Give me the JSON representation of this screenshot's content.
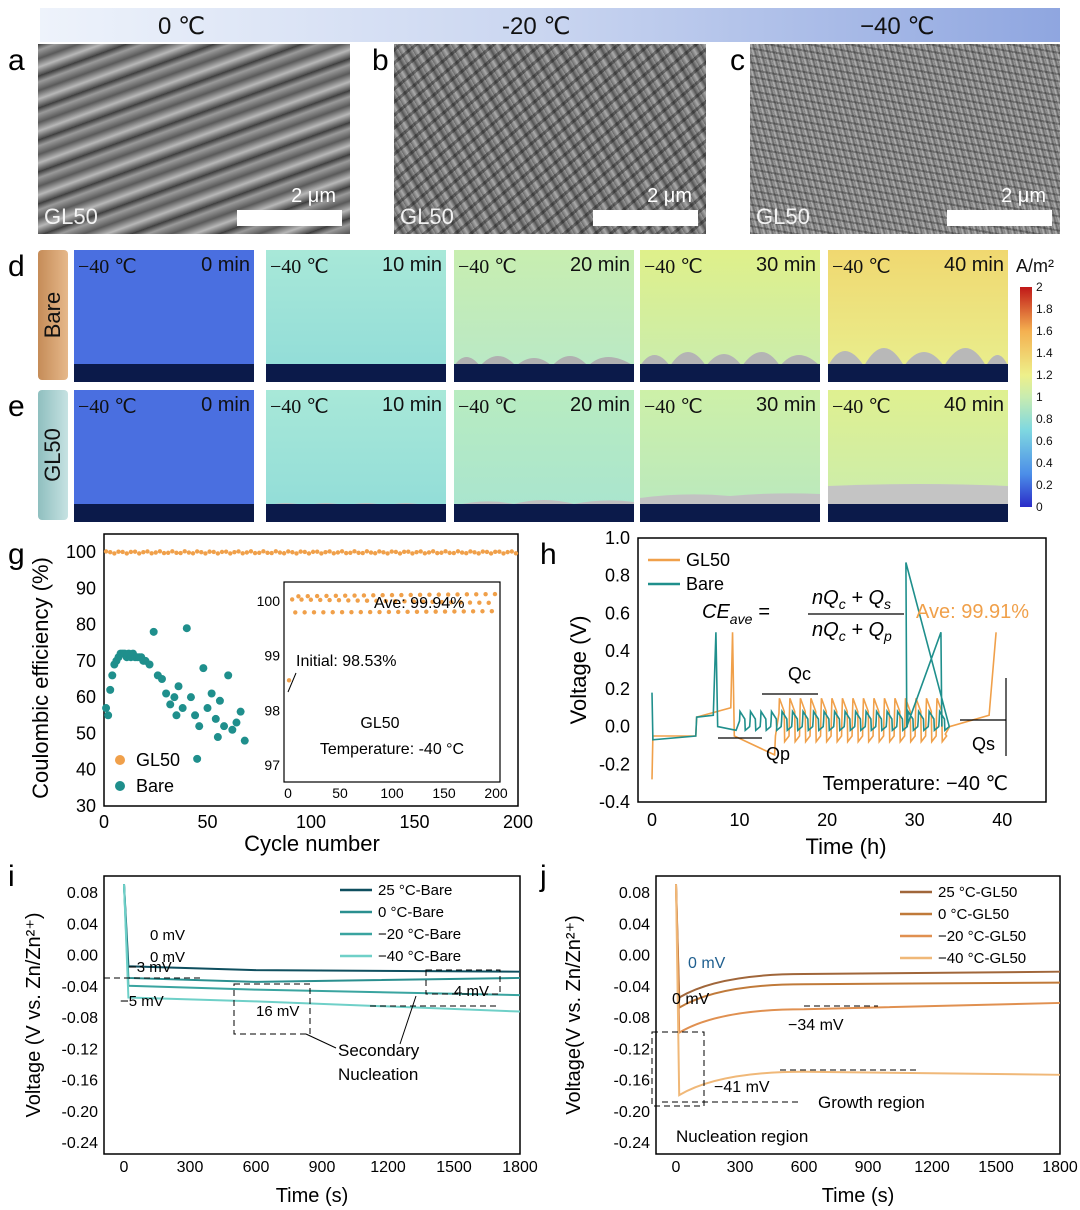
{
  "header": {
    "temps": [
      "0 ℃",
      "-20 ℃",
      "−40 ℃"
    ]
  },
  "panels": {
    "a": "a",
    "b": "b",
    "c": "c",
    "d": "d",
    "e": "e",
    "g": "g",
    "h": "h",
    "i": "i",
    "j": "j"
  },
  "sem": {
    "sample": "GL50",
    "scale": "2 μm"
  },
  "sim": {
    "rows": [
      "Bare",
      "GL50"
    ],
    "temp": "−40 ℃",
    "times": [
      "0 min",
      "10 min",
      "20 min",
      "30 min",
      "40 min"
    ],
    "unit": "A/m²",
    "cbar_ticks": [
      "2",
      "1.8",
      "1.6",
      "1.4",
      "1.2",
      "1",
      "0.8",
      "0.6",
      "0.4",
      "0.2",
      "0"
    ]
  },
  "chart_g": {
    "ylabel": "Coulombic efficiency (%)",
    "xlabel": "Cycle number",
    "yticks": [
      "30",
      "40",
      "50",
      "60",
      "70",
      "80",
      "90",
      "100"
    ],
    "xticks": [
      "0",
      "50",
      "100",
      "150",
      "200"
    ],
    "legend": [
      "GL50",
      "Bare"
    ],
    "inset": {
      "ave": "Ave: 99.94%",
      "initial": "Initial: 98.53%",
      "sample": "GL50",
      "temperature": "Temperature: -40 °C",
      "yticks": [
        "97",
        "98",
        "99",
        "100"
      ],
      "xticks": [
        "0",
        "50",
        "100",
        "150",
        "200"
      ]
    }
  },
  "chart_h": {
    "ylabel": "Voltage (V)",
    "xlabel": "Time (h)",
    "yticks": [
      "-0.4",
      "-0.2",
      "0.0",
      "0.2",
      "0.4",
      "0.6",
      "0.8",
      "1.0"
    ],
    "xticks": [
      "0",
      "10",
      "20",
      "30",
      "40"
    ],
    "legend": [
      "GL50",
      "Bare"
    ],
    "formula_lhs": "CE",
    "formula_sub": "ave",
    "formula_eq": "=",
    "formula_num": "nQ",
    "formula_num_sub": "c",
    "formula_num_plus": " + Q",
    "formula_num_sub2": "s",
    "formula_den": "nQ",
    "formula_den_sub": "c",
    "formula_den_plus": " + Q",
    "formula_den_sub2": "p",
    "ave": "Ave: 99.91%",
    "qc": "Qc",
    "qp": "Qp",
    "qs": "Qs",
    "temperature": "Temperature: −40 ℃"
  },
  "chart_i": {
    "ylabel": "Voltage (V vs. Zn/Zn²⁺)",
    "xlabel": "Time (s)",
    "yticks": [
      "0.08",
      "0.04",
      "0.00",
      "-0.04",
      "-0.08",
      "-0.12",
      "-0.16",
      "-0.20",
      "-0.24"
    ],
    "xticks": [
      "0",
      "300",
      "600",
      "900",
      "1200",
      "1500",
      "1800"
    ],
    "legend": [
      "25 °C-Bare",
      "0 °C-Bare",
      "−20 °C-Bare",
      "−40 °C-Bare"
    ],
    "ann": [
      "0 mV",
      "0 mV",
      "−3 mV",
      "−5 mV",
      "16 mV",
      "4 mV",
      "Secondary",
      "Nucleation"
    ]
  },
  "chart_j": {
    "ylabel": "Voltage(V vs. Zn/Zn²⁺)",
    "xlabel": "Time (s)",
    "yticks": [
      "0.08",
      "0.04",
      "0.00",
      "-0.04",
      "-0.08",
      "-0.12",
      "-0.16",
      "-0.20",
      "-0.24"
    ],
    "xticks": [
      "0",
      "300",
      "600",
      "900",
      "1200",
      "1500",
      "1800"
    ],
    "legend": [
      "25 °C-GL50",
      "0 °C-GL50",
      "−20 °C-GL50",
      "−40 °C-GL50"
    ],
    "ann": [
      "0 mV",
      "0 mV",
      "−34 mV",
      "−41 mV",
      "Growth region",
      "Nucleation region"
    ]
  },
  "colors": {
    "orange": "#f0a04a",
    "teal": "#1f8f8c",
    "dark": "#0b1a4a"
  }
}
